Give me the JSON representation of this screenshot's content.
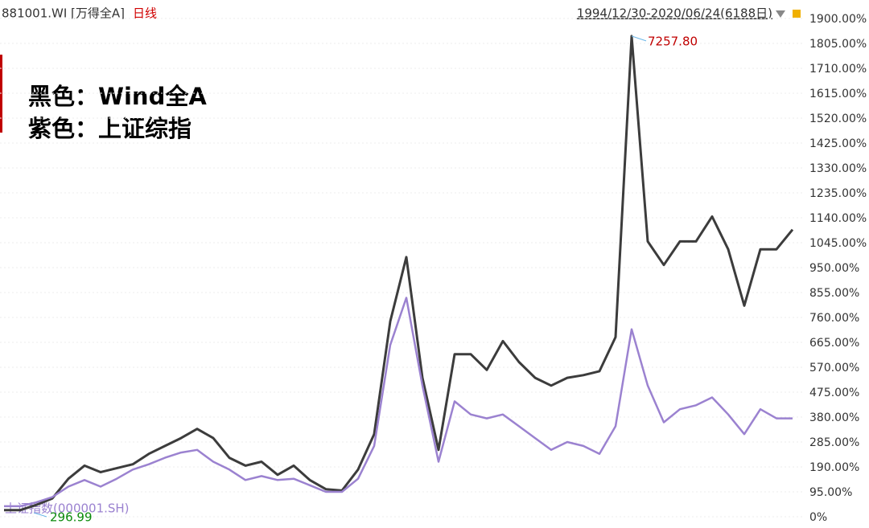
{
  "chart_data": {
    "type": "line",
    "symbol": "881001.WI [万得全A]",
    "period": "日线",
    "range": "1994/12/30-2020/06/24(6188日)",
    "notes": [
      "黑色：Wind全A",
      "紫色：上证综指"
    ],
    "max_label": "7257.80",
    "min_label": "296.99",
    "categories": [
      null,
      null,
      null,
      null,
      null,
      null,
      null,
      null,
      null,
      null,
      null,
      null,
      null,
      null,
      null,
      null,
      null,
      null,
      null,
      null,
      null,
      null,
      null,
      null,
      null,
      null,
      null,
      null,
      null,
      null,
      null,
      null,
      null,
      null,
      null,
      null,
      null,
      null,
      null,
      null,
      null,
      null,
      null,
      null,
      null,
      null,
      null,
      null,
      null,
      null
    ],
    "series": [
      {
        "name": "881001.WI [万得全A]",
        "color": "#3c3c3c",
        "values": [
          25,
          25,
          45,
          70,
          145,
          195,
          170,
          185,
          200,
          240,
          270,
          300,
          335,
          300,
          225,
          195,
          210,
          160,
          195,
          140,
          105,
          100,
          180,
          315,
          745,
          990,
          530,
          255,
          620,
          620,
          560,
          670,
          590,
          530,
          500,
          530,
          540,
          555,
          685,
          1833,
          1050,
          960,
          1050,
          1050,
          1145,
          1020,
          805,
          1020,
          1020,
          1095
        ]
      },
      {
        "name": "上证指数(000001.SH)",
        "color": "#9b82d0",
        "values": [
          40,
          40,
          55,
          75,
          115,
          140,
          115,
          145,
          180,
          200,
          225,
          245,
          255,
          210,
          180,
          140,
          155,
          140,
          145,
          120,
          95,
          95,
          145,
          270,
          655,
          835,
          500,
          210,
          440,
          390,
          375,
          390,
          345,
          300,
          255,
          285,
          270,
          240,
          345,
          715,
          500,
          360,
          410,
          425,
          455,
          390,
          315,
          410,
          375,
          375
        ]
      }
    ],
    "ylim": [
      0,
      1900
    ],
    "yticks": [
      {
        "value": 0,
        "label": "0%"
      },
      {
        "value": 95,
        "label": "95.00%"
      },
      {
        "value": 190,
        "label": "190.00%"
      },
      {
        "value": 285,
        "label": "285.00%"
      },
      {
        "value": 380,
        "label": "380.00%"
      },
      {
        "value": 475,
        "label": "475.00%"
      },
      {
        "value": 570,
        "label": "570.00%"
      },
      {
        "value": 665,
        "label": "665.00%"
      },
      {
        "value": 760,
        "label": "760.00%"
      },
      {
        "value": 855,
        "label": "855.00%"
      },
      {
        "value": 950,
        "label": "950.00%"
      },
      {
        "value": 1045,
        "label": "1045.00%"
      },
      {
        "value": 1140,
        "label": "1140.00%"
      },
      {
        "value": 1235,
        "label": "1235.00%"
      },
      {
        "value": 1330,
        "label": "1330.00%"
      },
      {
        "value": 1425,
        "label": "1425.00%"
      },
      {
        "value": 1520,
        "label": "1520.00%"
      },
      {
        "value": 1615,
        "label": "1615.00%"
      },
      {
        "value": 1710,
        "label": "1710.00%"
      },
      {
        "value": 1805,
        "label": "1805.00%"
      },
      {
        "value": 1900,
        "label": "1900.00%"
      }
    ],
    "grid": true
  }
}
